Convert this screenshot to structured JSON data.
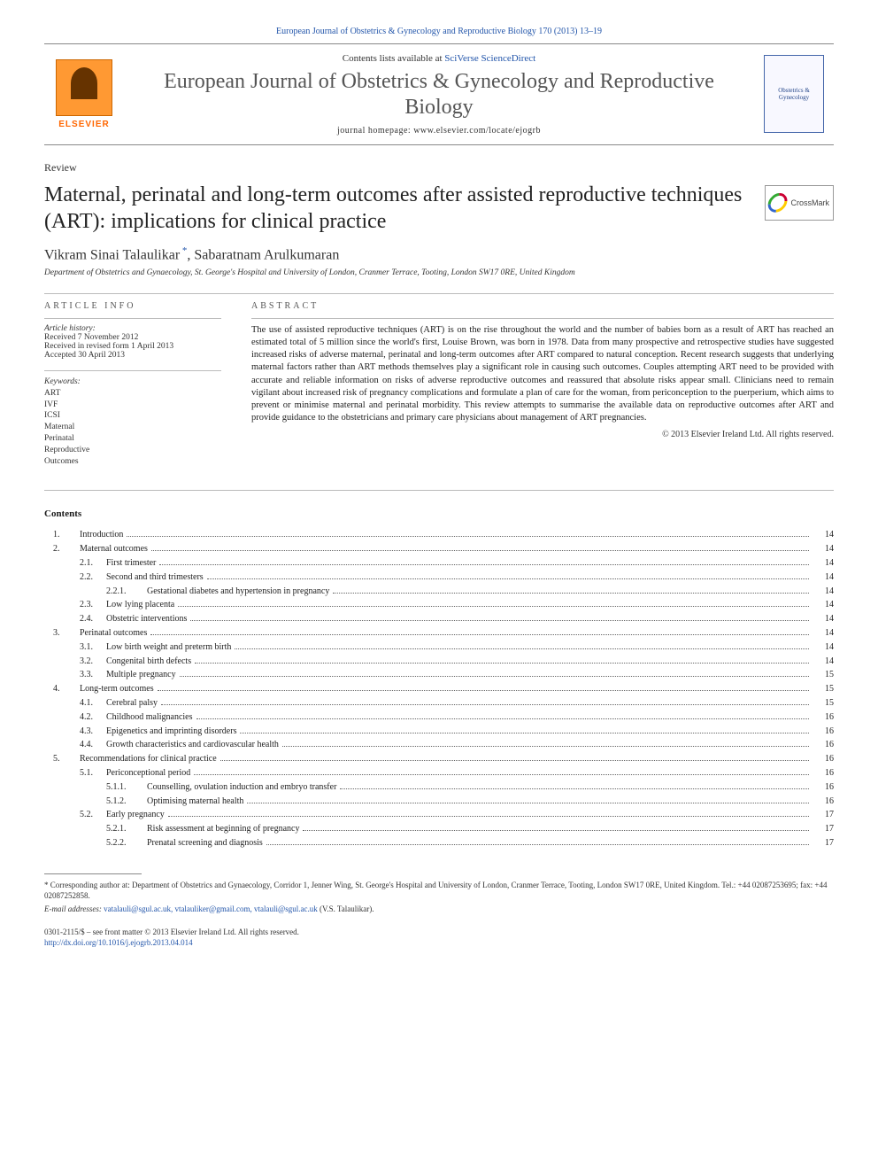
{
  "header": {
    "journal_ref": "European Journal of Obstetrics & Gynecology and Reproductive Biology 170 (2013) 13–19",
    "contents_line_prefix": "Contents lists available at ",
    "contents_line_link": "SciVerse ScienceDirect",
    "journal_title": "European Journal of Obstetrics & Gynecology and Reproductive Biology",
    "homepage_label": "journal homepage: www.elsevier.com/locate/ejogrb",
    "elsevier_label": "ELSEVIER",
    "cover_text": "Obstetrics & Gynecology",
    "crossmark": "CrossMark"
  },
  "article": {
    "type": "Review",
    "title": "Maternal, perinatal and long-term outcomes after assisted reproductive techniques (ART): implications for clinical practice",
    "authors": "Vikram Sinai Talaulikar *, Sabaratnam Arulkumaran",
    "affiliation": "Department of Obstetrics and Gynaecology, St. George's Hospital and University of London, Cranmer Terrace, Tooting, London SW17 0RE, United Kingdom"
  },
  "article_info": {
    "heading": "ARTICLE INFO",
    "history_label": "Article history:",
    "received": "Received 7 November 2012",
    "revised": "Received in revised form 1 April 2013",
    "accepted": "Accepted 30 April 2013",
    "keywords_label": "Keywords:",
    "keywords": [
      "ART",
      "IVF",
      "ICSI",
      "Maternal",
      "Perinatal",
      "Reproductive",
      "Outcomes"
    ]
  },
  "abstract": {
    "heading": "ABSTRACT",
    "text": "The use of assisted reproductive techniques (ART) is on the rise throughout the world and the number of babies born as a result of ART has reached an estimated total of 5 million since the world's first, Louise Brown, was born in 1978. Data from many prospective and retrospective studies have suggested increased risks of adverse maternal, perinatal and long-term outcomes after ART compared to natural conception. Recent research suggests that underlying maternal factors rather than ART methods themselves play a significant role in causing such outcomes. Couples attempting ART need to be provided with accurate and reliable information on risks of adverse reproductive outcomes and reassured that absolute risks appear small. Clinicians need to remain vigilant about increased risk of pregnancy complications and formulate a plan of care for the woman, from periconception to the puerperium, which aims to prevent or minimise maternal and perinatal morbidity. This review attempts to summarise the available data on reproductive outcomes after ART and provide guidance to the obstetricians and primary care physicians about management of ART pregnancies.",
    "copyright": "© 2013 Elsevier Ireland Ltd. All rights reserved."
  },
  "contents": {
    "heading": "Contents",
    "items": [
      {
        "num": "1.",
        "level": 1,
        "title": "Introduction",
        "page": "14"
      },
      {
        "num": "2.",
        "level": 1,
        "title": "Maternal outcomes",
        "page": "14"
      },
      {
        "num": "2.1.",
        "level": 2,
        "title": "First trimester",
        "page": "14"
      },
      {
        "num": "2.2.",
        "level": 2,
        "title": "Second and third trimesters",
        "page": "14"
      },
      {
        "num": "2.2.1.",
        "level": 3,
        "title": "Gestational diabetes and hypertension in pregnancy",
        "page": "14"
      },
      {
        "num": "2.3.",
        "level": 2,
        "title": "Low lying placenta",
        "page": "14"
      },
      {
        "num": "2.4.",
        "level": 2,
        "title": "Obstetric interventions",
        "page": "14"
      },
      {
        "num": "3.",
        "level": 1,
        "title": "Perinatal outcomes",
        "page": "14"
      },
      {
        "num": "3.1.",
        "level": 2,
        "title": "Low birth weight and preterm birth",
        "page": "14"
      },
      {
        "num": "3.2.",
        "level": 2,
        "title": "Congenital birth defects",
        "page": "14"
      },
      {
        "num": "3.3.",
        "level": 2,
        "title": "Multiple pregnancy",
        "page": "15"
      },
      {
        "num": "4.",
        "level": 1,
        "title": "Long-term outcomes",
        "page": "15"
      },
      {
        "num": "4.1.",
        "level": 2,
        "title": "Cerebral palsy",
        "page": "15"
      },
      {
        "num": "4.2.",
        "level": 2,
        "title": "Childhood malignancies",
        "page": "16"
      },
      {
        "num": "4.3.",
        "level": 2,
        "title": "Epigenetics and imprinting disorders",
        "page": "16"
      },
      {
        "num": "4.4.",
        "level": 2,
        "title": "Growth characteristics and cardiovascular health",
        "page": "16"
      },
      {
        "num": "5.",
        "level": 1,
        "title": "Recommendations for clinical practice",
        "page": "16"
      },
      {
        "num": "5.1.",
        "level": 2,
        "title": "Periconceptional period",
        "page": "16"
      },
      {
        "num": "5.1.1.",
        "level": 3,
        "title": "Counselling, ovulation induction and embryo transfer",
        "page": "16"
      },
      {
        "num": "5.1.2.",
        "level": 3,
        "title": "Optimising maternal health",
        "page": "16"
      },
      {
        "num": "5.2.",
        "level": 2,
        "title": "Early pregnancy",
        "page": "17"
      },
      {
        "num": "5.2.1.",
        "level": 3,
        "title": "Risk assessment at beginning of pregnancy",
        "page": "17"
      },
      {
        "num": "5.2.2.",
        "level": 3,
        "title": "Prenatal screening and diagnosis",
        "page": "17"
      }
    ]
  },
  "footer": {
    "correspondence": "Corresponding author at: Department of Obstetrics and Gynaecology, Corridor 1, Jenner Wing, St. George's Hospital and University of London, Cranmer Terrace, Tooting, London SW17 0RE, United Kingdom. Tel.: +44 02087253695; fax: +44 02087252858.",
    "email_label": "E-mail addresses: ",
    "emails": "vatalauli@sgul.ac.uk, vtalauliker@gmail.com, vtalauli@sgul.ac.uk",
    "email_suffix": " (V.S. Talaulikar).",
    "issn_line": "0301-2115/$ – see front matter © 2013 Elsevier Ireland Ltd. All rights reserved.",
    "doi": "http://dx.doi.org/10.1016/j.ejogrb.2013.04.014"
  },
  "colors": {
    "link": "#2255aa",
    "text": "#1a1a1a",
    "muted": "#555",
    "border": "#bbb",
    "elsevier_orange": "#ff6600"
  }
}
